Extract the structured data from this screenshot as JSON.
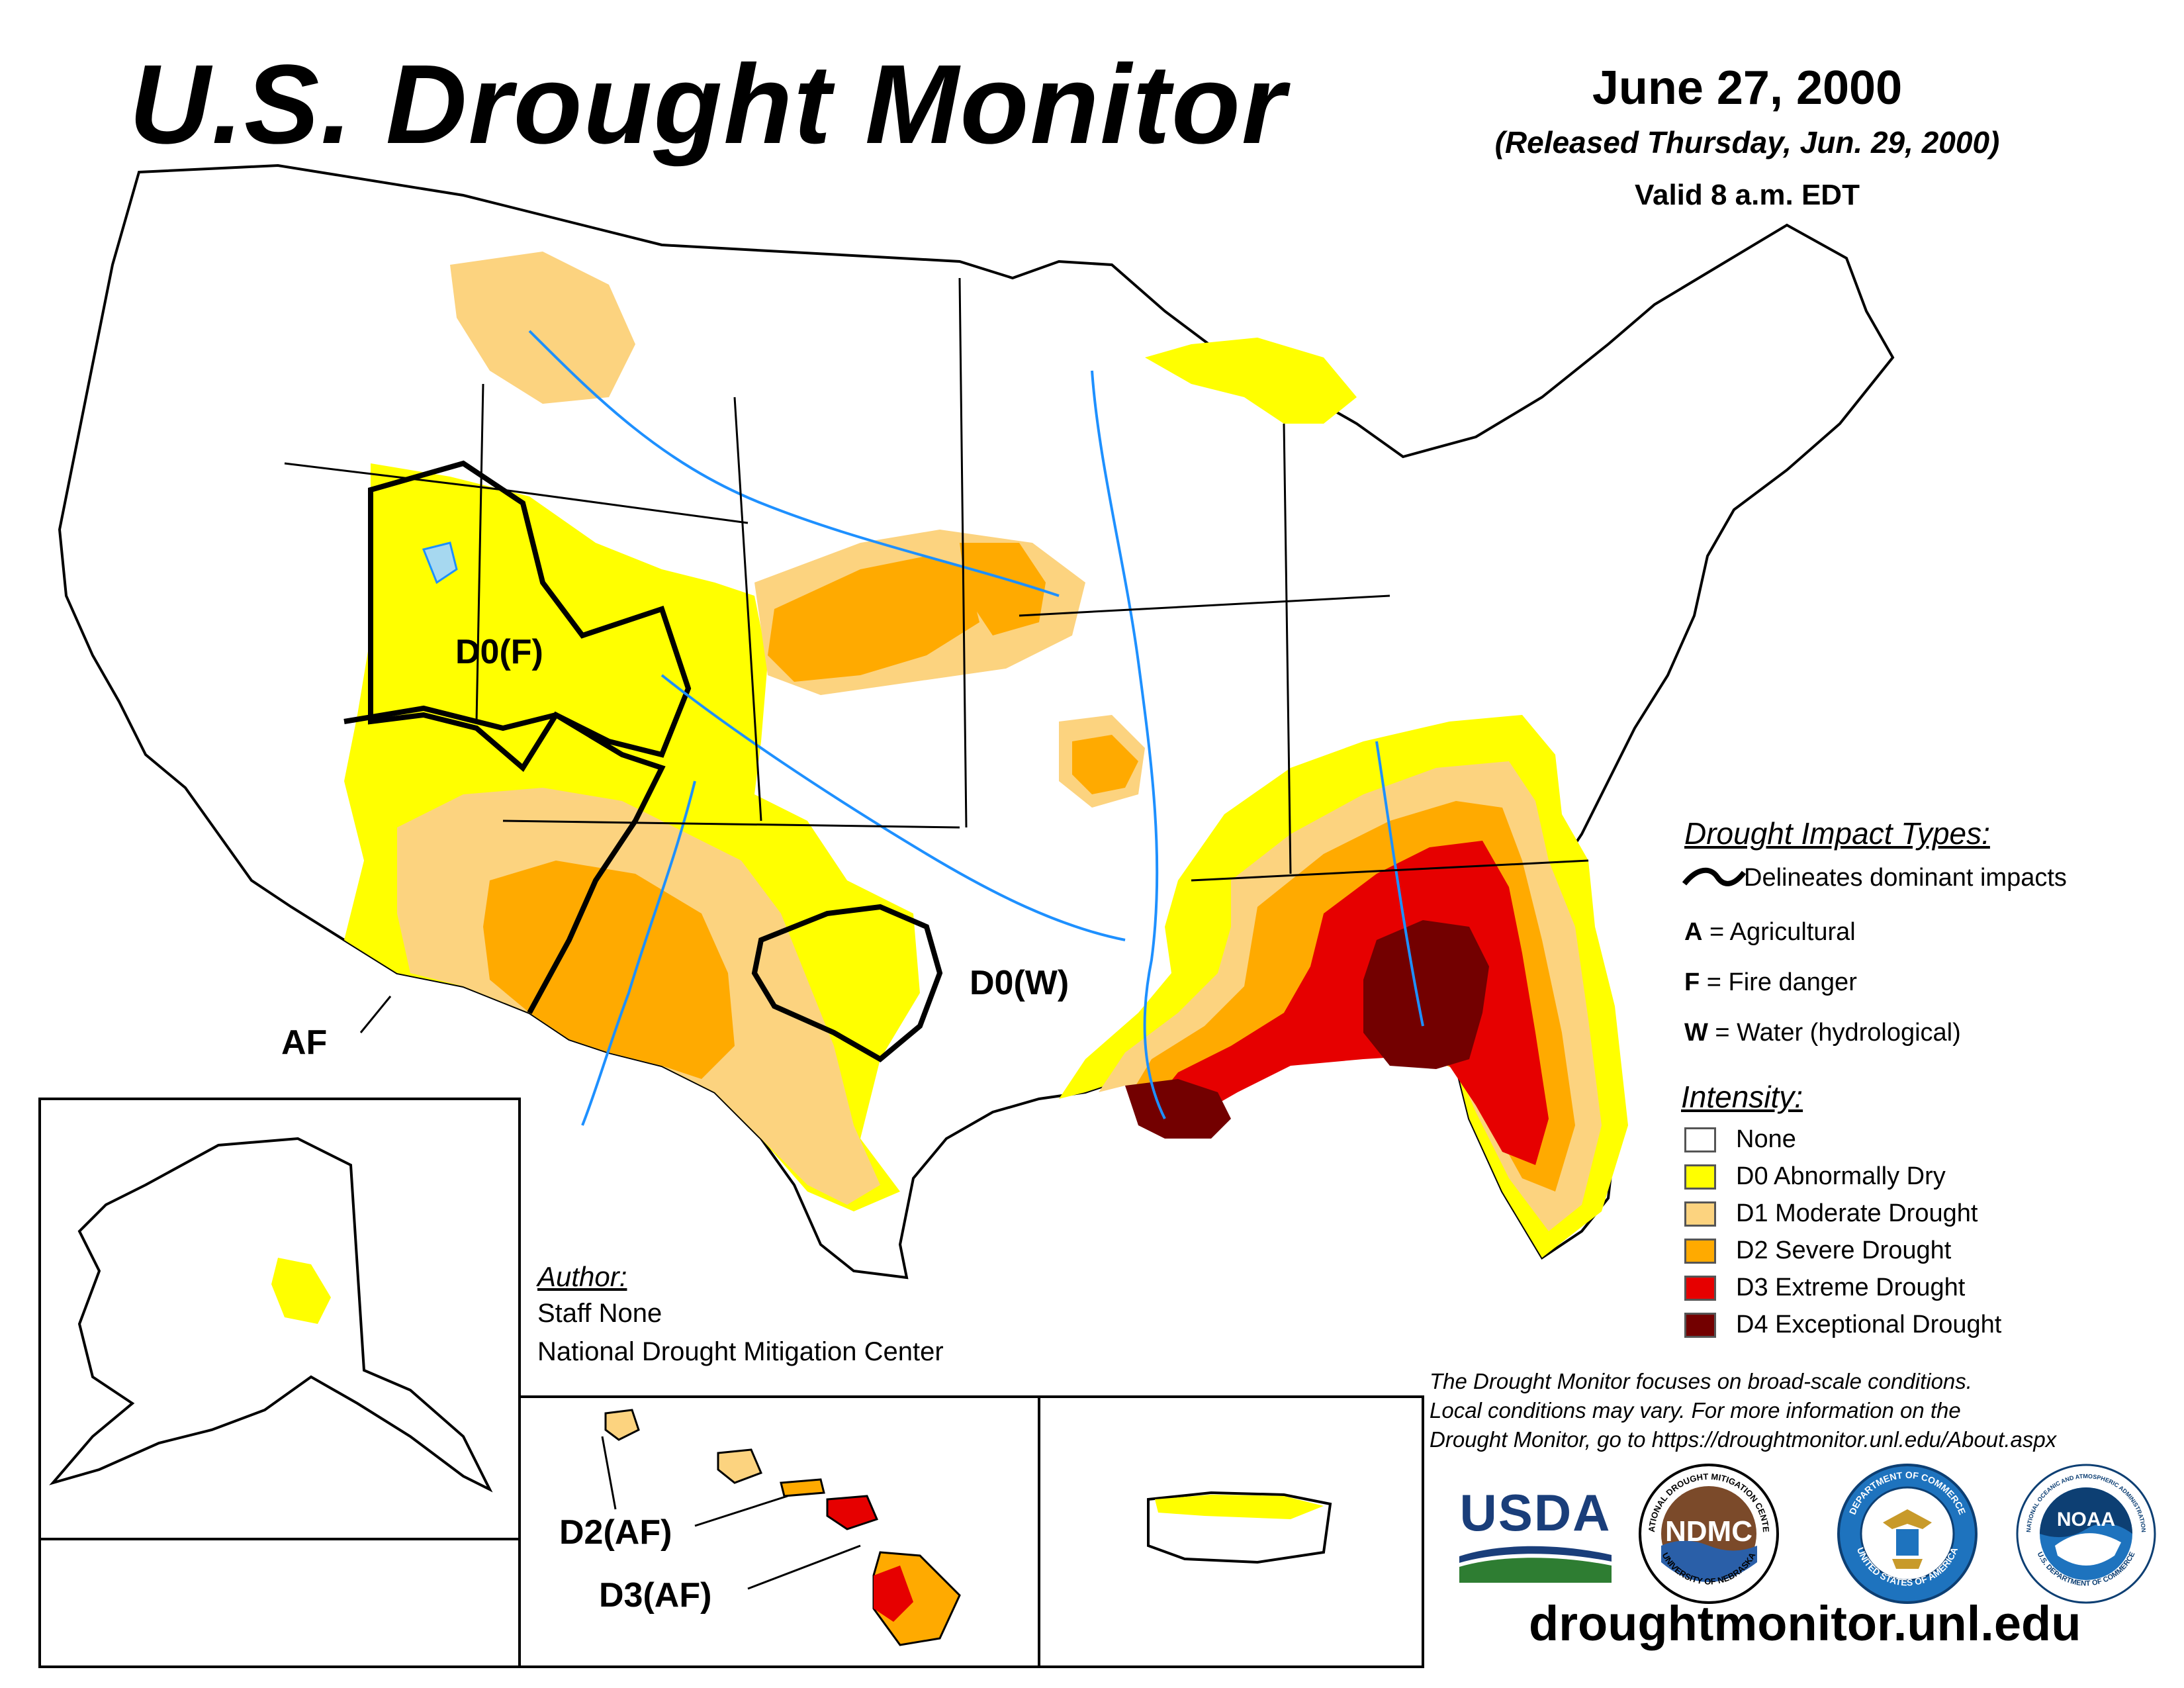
{
  "header": {
    "title": "U.S. Drought Monitor",
    "date": "June 27, 2000",
    "released": "(Released Thursday, Jun. 29, 2000)",
    "valid": "Valid 8 a.m. EDT"
  },
  "map_labels": {
    "d0f": "D0(F)",
    "d0w": "D0(W)",
    "af": "AF",
    "hi_d2": "D2(AF)",
    "hi_d3": "D3(AF)"
  },
  "impact_legend": {
    "title": "Drought Impact Types:",
    "line_desc": "Delineates dominant impacts",
    "items": [
      {
        "code": "A",
        "desc": " = Agricultural"
      },
      {
        "code": "F",
        "desc": " = Fire danger"
      },
      {
        "code": "W",
        "desc": " = Water (hydrological)"
      }
    ]
  },
  "intensity_legend": {
    "title": "Intensity:",
    "items": [
      {
        "label": "None",
        "color": "#ffffff"
      },
      {
        "label": "D0 Abnormally Dry",
        "color": "#ffff00"
      },
      {
        "label": "D1 Moderate Drought",
        "color": "#fcd37f"
      },
      {
        "label": "D2 Severe Drought",
        "color": "#ffaa00"
      },
      {
        "label": "D3 Extreme Drought",
        "color": "#e60000"
      },
      {
        "label": "D4 Exceptional Drought",
        "color": "#730000"
      }
    ]
  },
  "author": {
    "heading": "Author:",
    "name": "Staff None",
    "org": "National Drought Mitigation Center"
  },
  "disclaimer": {
    "line1": "The Drought Monitor focuses on broad-scale conditions.",
    "line2": "Local conditions may vary. For more information on the",
    "line3": "Drought Monitor, go to https://droughtmonitor.unl.edu/About.aspx"
  },
  "logos": {
    "usda": "USDA",
    "ndmc": "NDMC",
    "ndmc_ring_top": "NATIONAL DROUGHT MITIGATION CENTER",
    "ndmc_ring_bottom": "UNIVERSITY OF NEBRASKA",
    "commerce_ring_top": "DEPARTMENT OF COMMERCE",
    "commerce_ring_bottom": "UNITED STATES OF AMERICA",
    "noaa": "NOAA",
    "noaa_ring_top": "NATIONAL OCEANIC AND ATMOSPHERIC ADMINISTRATION",
    "noaa_ring_bottom": "U.S. DEPARTMENT OF COMMERCE"
  },
  "footer": {
    "url": "droughtmonitor.unl.edu"
  },
  "colors": {
    "d0": "#ffff00",
    "d1": "#fcd37f",
    "d2": "#ffaa00",
    "d3": "#e60000",
    "d4": "#730000",
    "water": "#a6d8f0",
    "river": "#1e90ff"
  }
}
